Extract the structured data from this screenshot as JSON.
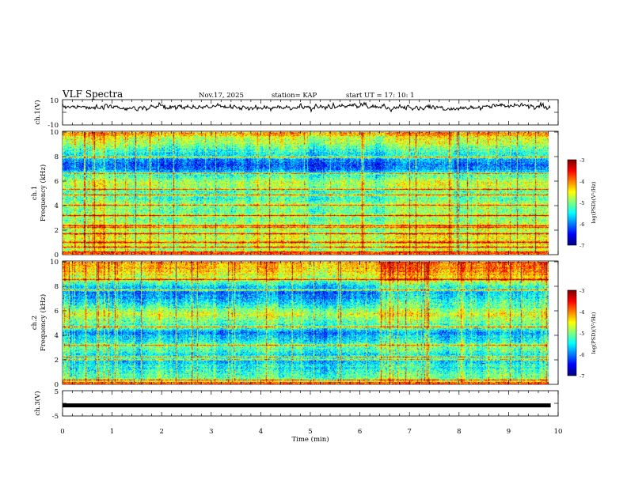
{
  "header": {
    "title": "VLF Spectra",
    "date": "Nov.17, 2025",
    "station": "station= KAP",
    "start": "start  UT  =   17: 10: 1"
  },
  "chart_data": [
    {
      "id": "ch1-waveform",
      "type": "line",
      "ylabel": "ch.1(V)",
      "ylim": [
        -10,
        10
      ],
      "yticks": [
        "10",
        "-10"
      ],
      "xlim": [
        0,
        10
      ],
      "x_end": 9.85,
      "mean": 4.2,
      "amplitude": 2.6,
      "baseline_wander": [
        5.0,
        4.0,
        4.0,
        3.0,
        4.5,
        3.5,
        5.0,
        4.0,
        3.5,
        3.8,
        4.0,
        4.5,
        5.0,
        4.5,
        4.0,
        3.5,
        3.0,
        4.0,
        5.0,
        5.5,
        4.0
      ]
    },
    {
      "id": "ch1-spectrogram",
      "type": "heatmap",
      "ylabel": "ch.1\nFrequency (kHz)",
      "ylabel_lines": [
        "ch.1",
        "Frequency (kHz)"
      ],
      "ylim": [
        0,
        10
      ],
      "yticks": [
        "0",
        "2",
        "4",
        "6",
        "8",
        "10"
      ],
      "xlim": [
        0,
        10
      ],
      "x_end": 9.85,
      "value_range": [
        -7,
        -3
      ],
      "mean_profile": [
        -5.0,
        -4.8,
        -4.7,
        -4.6,
        -4.7,
        -4.9,
        -4.8,
        -5.0,
        -5.0,
        -5.1,
        -5.0,
        -5.2,
        -5.3,
        -5.0,
        -4.7,
        -5.1,
        -5.6,
        -6.1,
        -6.2,
        -5.6,
        -5.5,
        -5.1,
        -4.8,
        -4.6,
        -4.1
      ],
      "hlines_khz": [
        0.2,
        0.6,
        1.0,
        1.7,
        2.2,
        2.35,
        3.2,
        4.0,
        4.9,
        5.3,
        6.6,
        8.0
      ],
      "segment_change_min": 6.45
    },
    {
      "id": "ch1-colorbar",
      "type": "heatmap",
      "label": "log(PSD)(V²/Hz)",
      "range": [
        -7,
        -3
      ],
      "ticks": [
        "-3",
        "-4",
        "-5",
        "-6",
        "-7"
      ]
    },
    {
      "id": "ch2-spectrogram",
      "type": "heatmap",
      "ylabel": "ch.2\nFrequency (kHz)",
      "ylabel_lines": [
        "ch.2",
        "Frequency (kHz)"
      ],
      "ylim": [
        0,
        10
      ],
      "yticks": [
        "0",
        "2",
        "4",
        "6",
        "8",
        "10"
      ],
      "xlim": [
        0,
        10
      ],
      "x_end": 9.85,
      "value_range": [
        -7,
        -3
      ],
      "mean_profile": [
        -5.1,
        -5.0,
        -5.2,
        -5.4,
        -5.5,
        -5.7,
        -5.4,
        -5.1,
        -5.3,
        -5.6,
        -5.9,
        -5.4,
        -5.1,
        -4.9,
        -4.6,
        -5.1,
        -5.5,
        -5.8,
        -5.9,
        -5.7,
        -5.1,
        -4.6,
        -4.4,
        -4.2,
        -4.1
      ],
      "hlines_khz": [
        0.15,
        0.3,
        2.0,
        2.2,
        3.2,
        4.7,
        7.7,
        8.6
      ],
      "segment_change_min": 6.45
    },
    {
      "id": "ch2-colorbar",
      "type": "heatmap",
      "label": "log(PSD)(V²/Hz)",
      "range": [
        -7,
        -3
      ],
      "ticks": [
        "-3",
        "-4",
        "-5",
        "-6",
        "-7"
      ]
    },
    {
      "id": "ch3-waveform",
      "type": "line",
      "ylabel": "ch.3(V)",
      "ylim": [
        -5,
        5
      ],
      "yticks": [
        "5",
        "-5"
      ],
      "xlim": [
        0,
        10
      ],
      "x_end": 9.85,
      "constant_value": -0.8,
      "xlabel": "Time  (min)",
      "xticks": [
        "0",
        "1",
        "2",
        "3",
        "4",
        "5",
        "6",
        "7",
        "8",
        "9",
        "10"
      ]
    }
  ]
}
